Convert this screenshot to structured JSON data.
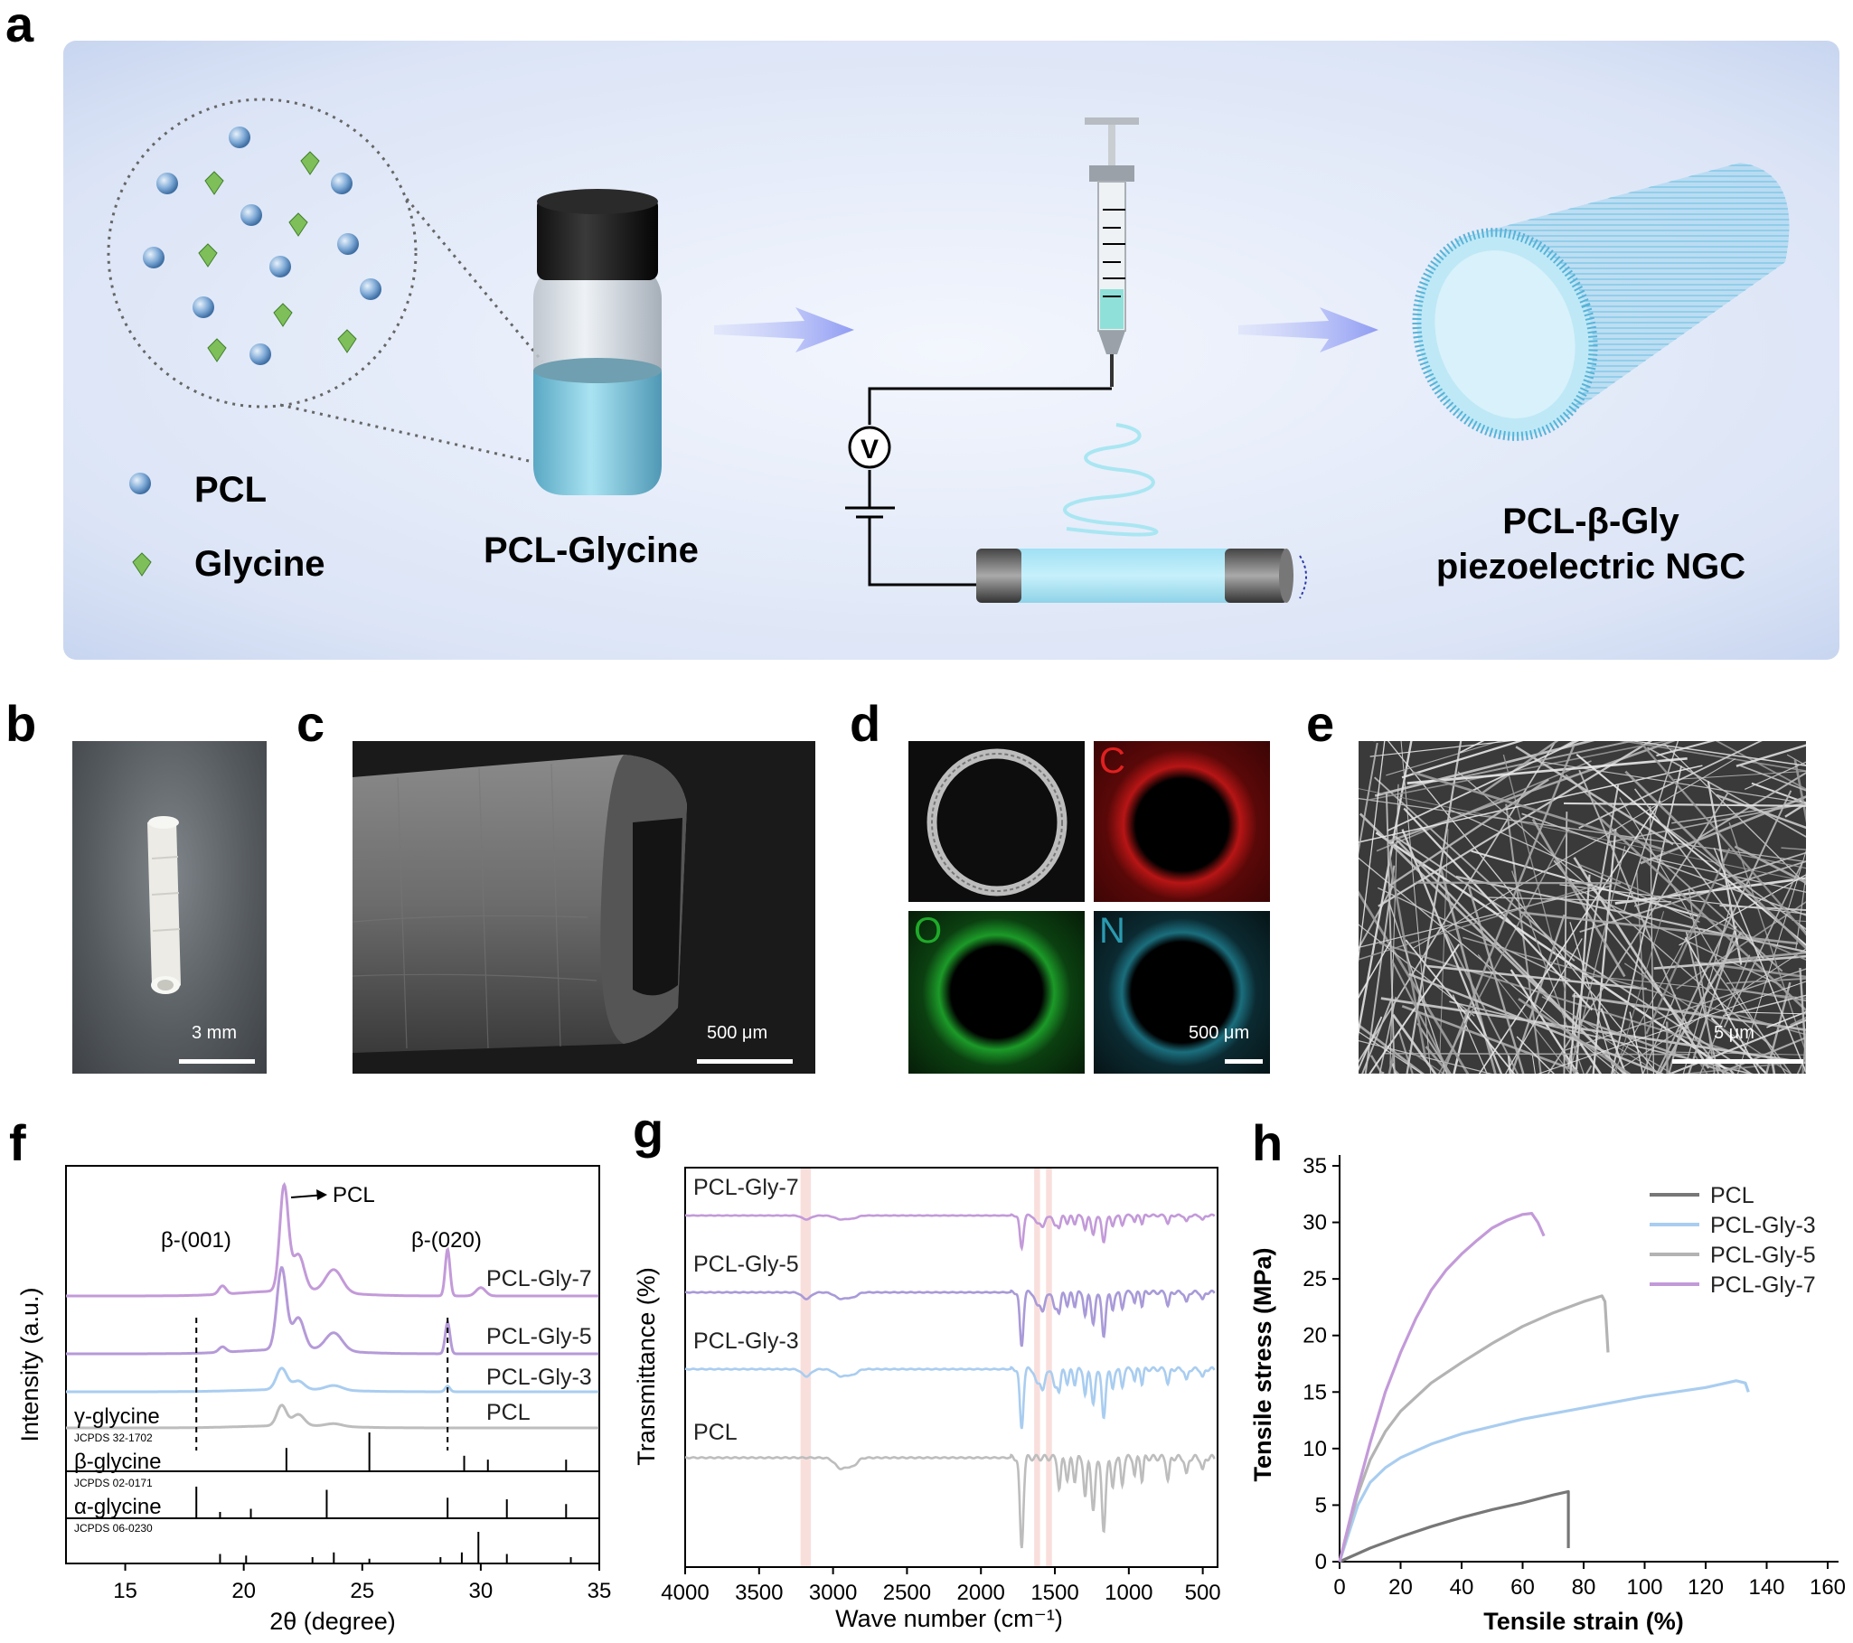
{
  "panels": {
    "a": "a",
    "b": "b",
    "c": "c",
    "d": "d",
    "e": "e",
    "f": "f",
    "g": "g",
    "h": "h"
  },
  "schematic": {
    "legend_pcl": "PCL",
    "legend_glycine": "Glycine",
    "vial_label": "PCL-Glycine",
    "voltmeter": "V",
    "product_line1": "PCL-β-Gly",
    "product_line2": "piezoelectric NGC",
    "colors": {
      "background": "#dfe7f7",
      "arrow": "#8f9cf3",
      "solution": "#8fd3e8",
      "sphere": "#7ea9d6",
      "glycine": "#7fbf5a"
    }
  },
  "micro": {
    "b_scale": "3 mm",
    "c_scale": "500 μm",
    "d_scale": "500 μm",
    "e_scale": "5 μm",
    "d_elements": [
      "C",
      "O",
      "N"
    ],
    "colors": {
      "C": "#e02020",
      "O": "#1faa2a",
      "N": "#2a9ab0"
    }
  },
  "chart_data": [
    {
      "panel": "f",
      "type": "line",
      "xlabel": "2θ (degree)",
      "ylabel": "Intensity (a.u.)",
      "xlim": [
        12.5,
        35
      ],
      "xticks": [
        15,
        20,
        25,
        30,
        35
      ],
      "annotations": [
        "β-(001)",
        "β-(020)",
        "PCL"
      ],
      "dashed_lines_x": [
        18.0,
        28.6
      ],
      "series": [
        {
          "name": "PCL-Gly-7",
          "color": "#c39ad9",
          "offset": 3.0
        },
        {
          "name": "PCL-Gly-5",
          "color": "#b59ad8",
          "offset": 2.05
        },
        {
          "name": "PCL-Gly-3",
          "color": "#a9cdf0",
          "offset": 1.4
        },
        {
          "name": "PCL",
          "color": "#bdbdbd",
          "offset": 0.9
        }
      ],
      "references": [
        {
          "name": "γ-glycine",
          "code": "JCPDS 32-1702",
          "peaks": [
            [
              21.8,
              0.6
            ],
            [
              25.3,
              1.0
            ],
            [
              29.3,
              0.4
            ],
            [
              30.3,
              0.3
            ],
            [
              33.6,
              0.3
            ]
          ]
        },
        {
          "name": "β-glycine",
          "code": "JCPDS 02-0171",
          "peaks": [
            [
              18.0,
              1.0
            ],
            [
              19.0,
              0.2
            ],
            [
              20.3,
              0.3
            ],
            [
              23.5,
              0.9
            ],
            [
              28.6,
              0.65
            ],
            [
              31.1,
              0.6
            ],
            [
              33.6,
              0.45
            ]
          ]
        },
        {
          "name": "α-glycine",
          "code": "JCPDS 06-0230",
          "peaks": [
            [
              19.0,
              0.3
            ],
            [
              20.1,
              0.25
            ],
            [
              22.9,
              0.2
            ],
            [
              23.8,
              0.35
            ],
            [
              25.3,
              0.15
            ],
            [
              28.3,
              0.2
            ],
            [
              29.2,
              0.35
            ],
            [
              29.9,
              1.0
            ],
            [
              31.1,
              0.3
            ],
            [
              33.8,
              0.2
            ]
          ]
        }
      ]
    },
    {
      "panel": "g",
      "type": "line",
      "xlabel": "Wave number (cm⁻¹)",
      "ylabel": "Transmittance (%)",
      "xlim": [
        4000,
        400
      ],
      "xticks": [
        4000,
        3500,
        3000,
        2500,
        2000,
        1500,
        1000,
        500
      ],
      "highlight_bands": [
        [
          3220,
          3150
        ],
        [
          1640,
          1600
        ],
        [
          1560,
          1520
        ]
      ],
      "series": [
        {
          "name": "PCL-Gly-7",
          "color": "#c39ad9"
        },
        {
          "name": "PCL-Gly-5",
          "color": "#a99ad8"
        },
        {
          "name": "PCL-Gly-3",
          "color": "#a9cdf0"
        },
        {
          "name": "PCL",
          "color": "#bdbdbd"
        }
      ]
    },
    {
      "panel": "h",
      "type": "line",
      "xlabel": "Tensile strain (%)",
      "ylabel": "Tensile stress (MPa)",
      "xlim": [
        0,
        160
      ],
      "ylim": [
        0,
        35
      ],
      "xticks": [
        0,
        20,
        40,
        60,
        80,
        100,
        120,
        140,
        160
      ],
      "yticks": [
        0,
        5,
        10,
        15,
        20,
        25,
        30,
        35
      ],
      "legend_position": "top-right",
      "series": [
        {
          "name": "PCL",
          "color": "#777777",
          "x": [
            0,
            5,
            10,
            20,
            30,
            40,
            50,
            60,
            70,
            75,
            75
          ],
          "y": [
            0,
            0.6,
            1.2,
            2.2,
            3.1,
            3.9,
            4.6,
            5.2,
            5.9,
            6.2,
            1.2
          ]
        },
        {
          "name": "PCL-Gly-3",
          "color": "#a9cdf0",
          "x": [
            0,
            3,
            6,
            10,
            15,
            20,
            30,
            40,
            60,
            80,
            100,
            120,
            130,
            133,
            134
          ],
          "y": [
            0,
            2.5,
            5,
            7,
            8.3,
            9.2,
            10.4,
            11.3,
            12.6,
            13.6,
            14.6,
            15.4,
            16.0,
            15.8,
            15.0
          ]
        },
        {
          "name": "PCL-Gly-5",
          "color": "#b3b3b3",
          "x": [
            0,
            3,
            6,
            10,
            15,
            20,
            30,
            40,
            50,
            60,
            70,
            80,
            86,
            87,
            88
          ],
          "y": [
            0,
            3,
            6,
            9,
            11.5,
            13.3,
            15.8,
            17.6,
            19.3,
            20.8,
            22.0,
            23.0,
            23.5,
            23.0,
            18.5
          ]
        },
        {
          "name": "PCL-Gly-7",
          "color": "#c39ad9",
          "x": [
            0,
            5,
            10,
            15,
            20,
            25,
            30,
            35,
            40,
            45,
            50,
            55,
            60,
            63,
            65,
            67
          ],
          "y": [
            0,
            5.5,
            10.5,
            15,
            18.5,
            21.5,
            24,
            25.8,
            27.2,
            28.4,
            29.5,
            30.2,
            30.7,
            30.8,
            30.0,
            28.8
          ]
        }
      ]
    }
  ]
}
